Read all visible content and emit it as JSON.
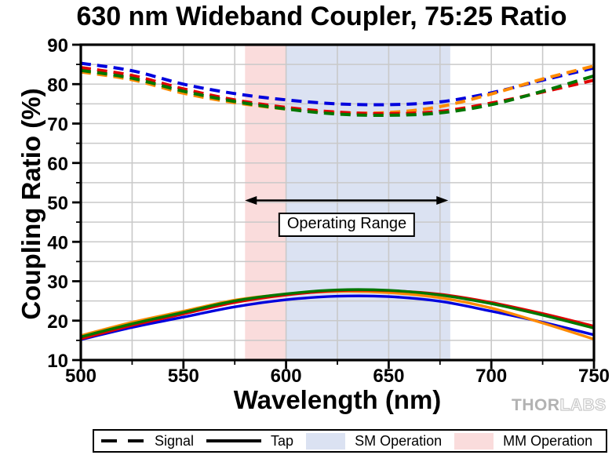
{
  "title": "630 nm Wideband Coupler, 75:25 Ratio",
  "watermark": {
    "thor": "THOR",
    "labs": "LABS"
  },
  "chart_data": {
    "type": "line",
    "title": "630 nm Wideband Coupler, 75:25 Ratio",
    "xlabel": "Wavelength (nm)",
    "ylabel": "Coupling Ratio (%)",
    "xlim": [
      500,
      750
    ],
    "ylim": [
      10,
      90
    ],
    "x_major_ticks": [
      500,
      550,
      600,
      650,
      700,
      750
    ],
    "y_major_ticks": [
      90,
      80,
      70,
      60,
      50,
      40,
      30,
      20,
      10
    ],
    "x_minor_step": 25,
    "y_minor_step": 5,
    "grid": "on (light gray, every 25 nm and every 5 %)",
    "grid_color": "#c9c9c9",
    "legend_position": "bottom",
    "legend": {
      "signal": "Signal",
      "tap": "Tap",
      "sm": "SM Operation",
      "mm": "MM Operation"
    },
    "bands": [
      {
        "label": "MM Operation",
        "from": 580,
        "to": 600,
        "color": "#fadcdc"
      },
      {
        "label": "SM Operation",
        "from": 600,
        "to": 680,
        "color": "#dbe2f2"
      }
    ],
    "annotation": {
      "label": "Operating Range",
      "arrow_from_nm": 580,
      "arrow_to_nm": 679,
      "arrow_y_pct": 50.5
    },
    "x": [
      500,
      525,
      550,
      575,
      600,
      625,
      650,
      675,
      700,
      725,
      750
    ],
    "series": [
      {
        "name": "signal-blue",
        "group": "Signal",
        "style": "dashed",
        "color": "#0000dd",
        "values": [
          85.3,
          83.4,
          80.0,
          77.6,
          76.0,
          75.0,
          74.8,
          75.5,
          77.8,
          81.0,
          84.1
        ]
      },
      {
        "name": "signal-orange",
        "group": "Signal",
        "style": "dashed",
        "color": "#ff8a00",
        "values": [
          83.1,
          81.1,
          77.7,
          75.3,
          73.7,
          72.8,
          72.8,
          74.3,
          77.5,
          81.3,
          84.6
        ]
      },
      {
        "name": "signal-red",
        "group": "Signal",
        "style": "dashed",
        "color": "#e00000",
        "values": [
          84.2,
          82.2,
          78.8,
          76.0,
          74.1,
          72.9,
          72.5,
          73.1,
          75.2,
          78.0,
          81.0
        ]
      },
      {
        "name": "signal-green",
        "group": "Signal",
        "style": "dashed",
        "color": "#007700",
        "values": [
          83.5,
          81.5,
          78.2,
          75.6,
          73.7,
          72.4,
          72.1,
          72.7,
          74.8,
          78.2,
          82.1
        ]
      },
      {
        "name": "tap-blue",
        "group": "Tap",
        "style": "solid",
        "color": "#0000dd",
        "values": [
          15.2,
          18.3,
          20.9,
          23.5,
          25.3,
          26.2,
          26.1,
          24.9,
          22.4,
          19.6,
          16.4
        ]
      },
      {
        "name": "tap-orange",
        "group": "Tap",
        "style": "solid",
        "color": "#ff8a00",
        "values": [
          16.2,
          19.6,
          22.4,
          25.2,
          26.7,
          27.4,
          27.1,
          25.8,
          23.2,
          19.4,
          15.3
        ]
      },
      {
        "name": "tap-red",
        "group": "Tap",
        "style": "solid",
        "color": "#e00000",
        "values": [
          15.4,
          18.8,
          21.7,
          24.6,
          26.5,
          27.6,
          27.6,
          26.7,
          24.6,
          21.8,
          18.6
        ]
      },
      {
        "name": "tap-green",
        "group": "Tap",
        "style": "solid",
        "color": "#007700",
        "values": [
          15.9,
          19.2,
          22.1,
          25.0,
          26.8,
          27.8,
          27.7,
          26.5,
          24.3,
          21.4,
          18.1
        ]
      }
    ]
  }
}
